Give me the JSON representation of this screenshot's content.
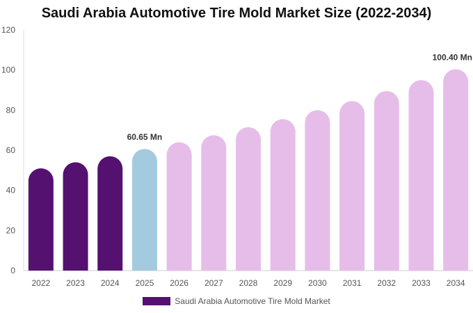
{
  "chart_data": {
    "type": "bar",
    "title": "Saudi Arabia Automotive Tire Mold Market Size (2022-2034)",
    "categories": [
      "2022",
      "2023",
      "2024",
      "2025",
      "2026",
      "2027",
      "2028",
      "2029",
      "2030",
      "2031",
      "2032",
      "2033",
      "2034"
    ],
    "series": [
      {
        "name": "Saudi Arabia Automotive Tire Mold Market",
        "values": [
          51,
          54,
          57,
          60.65,
          64,
          67.5,
          71.5,
          75.5,
          80,
          84.5,
          89.5,
          95,
          100.4
        ]
      }
    ],
    "ylim": [
      0,
      120
    ],
    "yticks": [
      0,
      20,
      40,
      60,
      80,
      100,
      120
    ],
    "data_labels": [
      {
        "index": 3,
        "text": "60.65 Mn"
      },
      {
        "index": 12,
        "text": "100.40 Mn"
      }
    ],
    "colors": {
      "historical": "#541170",
      "base_year": "#a4cadf",
      "forecast": "#e6bde9"
    },
    "historical_years": 3,
    "base_year_index": 3,
    "grid": false,
    "legend_position": "bottom"
  }
}
